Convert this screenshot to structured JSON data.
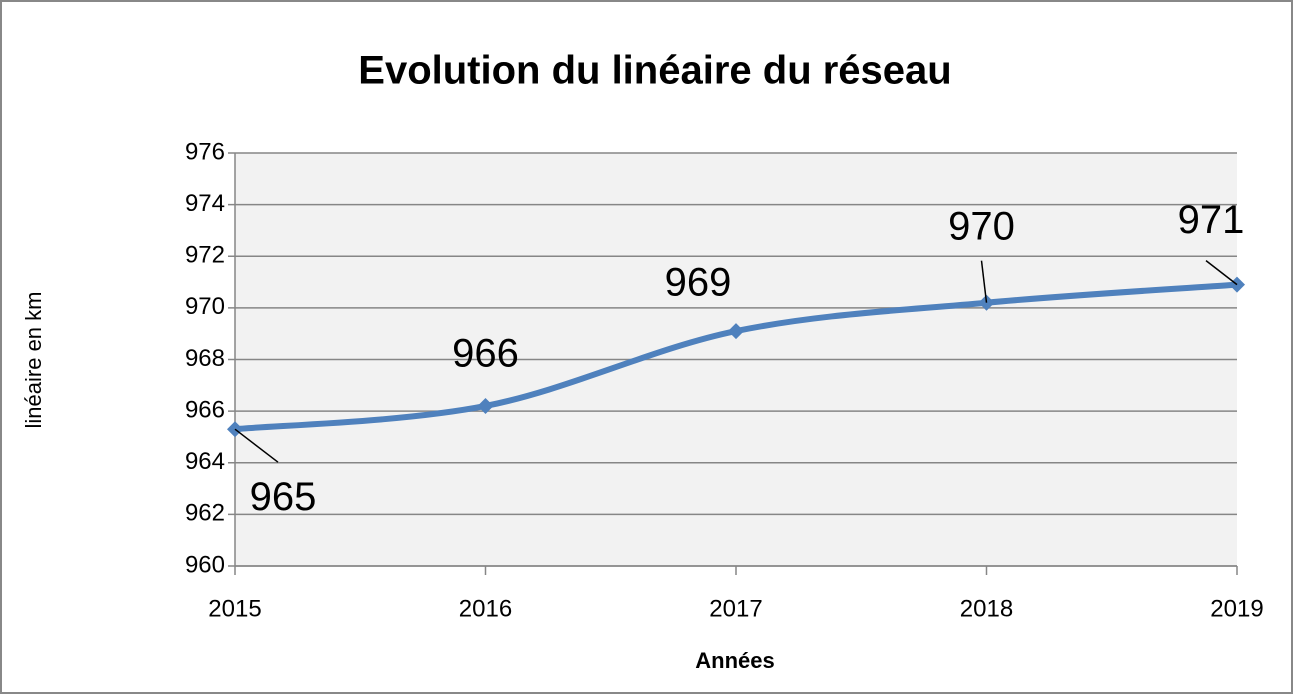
{
  "chart_data": {
    "type": "line",
    "title": "Evolution du linéaire du réseau",
    "x_label": "Années",
    "y_label": "linéaire en km",
    "categories": [
      "2015",
      "2016",
      "2017",
      "2018",
      "2019"
    ],
    "series": [
      {
        "name": "linéaire",
        "color": "#4f81bd",
        "values": [
          965.3,
          966.2,
          969.1,
          970.2,
          970.9
        ],
        "value_labels": [
          "965",
          "966",
          "969",
          "970",
          "971"
        ]
      }
    ],
    "ylim": [
      960,
      976
    ],
    "yticks": [
      960,
      962,
      964,
      966,
      968,
      970,
      972,
      974,
      976
    ],
    "grid": true,
    "smooth": true,
    "legend": false
  }
}
